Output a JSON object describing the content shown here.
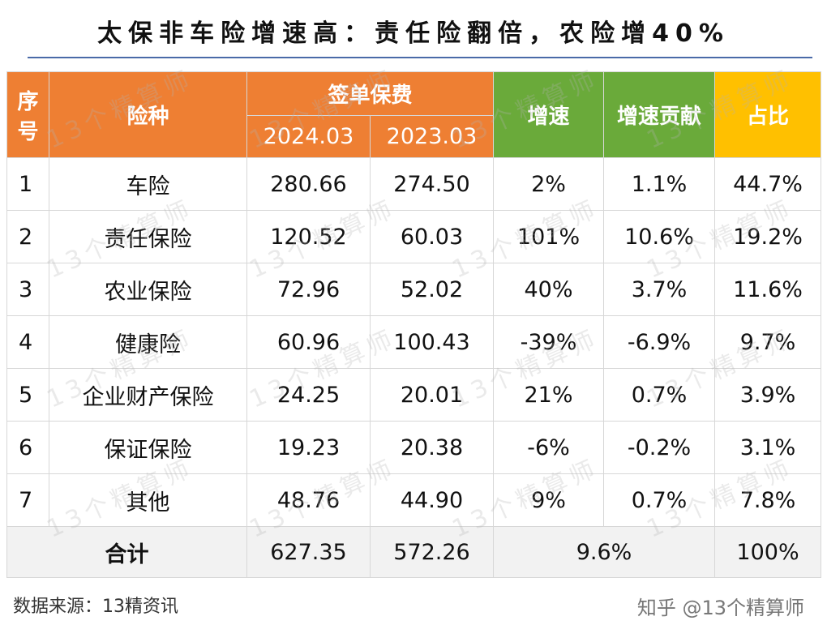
{
  "title": "太保非车险增速高：责任险翻倍，农险增40%",
  "headers": {
    "idx": "序号",
    "type": "险种",
    "premium": "签单保费",
    "year_current": "2024.03",
    "year_prev": "2023.03",
    "growth": "增速",
    "contribution": "增速贡献",
    "share": "占比"
  },
  "rows": [
    {
      "idx": "1",
      "type": "车险",
      "current": "280.66",
      "prev": "274.50",
      "growth": "2%",
      "contribution": "1.1%",
      "share": "44.7%"
    },
    {
      "idx": "2",
      "type": "责任保险",
      "current": "120.52",
      "prev": "60.03",
      "growth": "101%",
      "contribution": "10.6%",
      "share": "19.2%"
    },
    {
      "idx": "3",
      "type": "农业保险",
      "current": "72.96",
      "prev": "52.02",
      "growth": "40%",
      "contribution": "3.7%",
      "share": "11.6%"
    },
    {
      "idx": "4",
      "type": "健康险",
      "current": "60.96",
      "prev": "100.43",
      "growth": "-39%",
      "contribution": "-6.9%",
      "share": "9.7%"
    },
    {
      "idx": "5",
      "type": "企业财产保险",
      "current": "24.25",
      "prev": "20.01",
      "growth": "21%",
      "contribution": "0.7%",
      "share": "3.9%"
    },
    {
      "idx": "6",
      "type": "保证保险",
      "current": "19.23",
      "prev": "20.38",
      "growth": "-6%",
      "contribution": "-0.2%",
      "share": "3.1%"
    },
    {
      "idx": "7",
      "type": "其他",
      "current": "48.76",
      "prev": "44.90",
      "growth": "9%",
      "contribution": "0.7%",
      "share": "7.8%"
    }
  ],
  "total": {
    "label": "合计",
    "current": "627.35",
    "prev": "572.26",
    "growth": "9.6%",
    "share": "100%"
  },
  "source": "数据来源：13精资讯",
  "credit": "知乎 @13个精算师",
  "watermark": "13个精算师",
  "colors": {
    "orange": "#ee7f33",
    "green": "#6aaa3a",
    "yellow": "#ffc000",
    "title_rule": "#4a6aa8"
  }
}
